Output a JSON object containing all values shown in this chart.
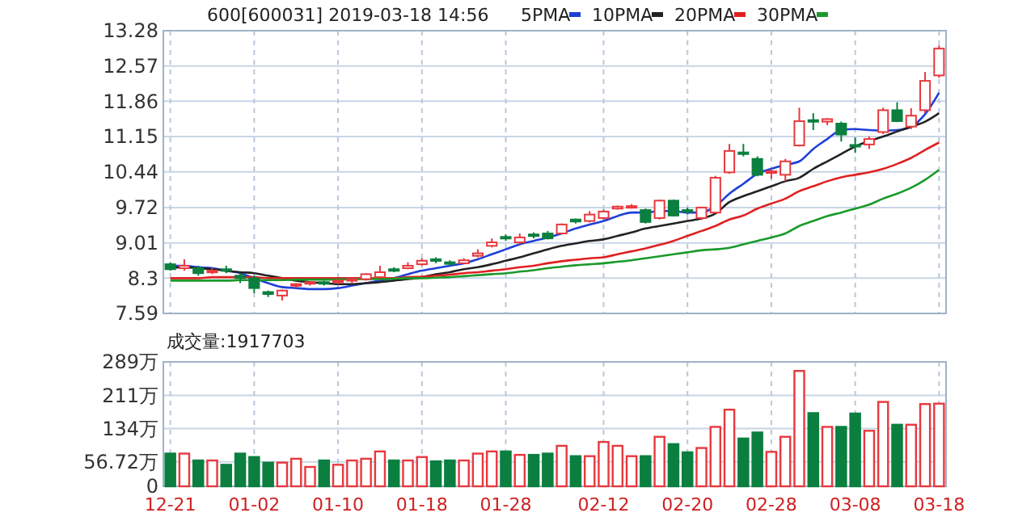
{
  "chart_data": [
    {
      "type": "candlestick",
      "title": "600[600031] 2019-03-18 14:56",
      "legend": "top right",
      "grid": true,
      "tick_labels": "y",
      "categories": [
        null,
        null,
        null,
        null,
        null,
        null,
        null,
        null,
        null,
        null,
        null,
        null,
        null,
        null,
        null,
        null,
        null,
        null,
        null,
        null,
        null,
        null,
        null,
        null,
        null,
        null,
        null,
        null,
        null,
        null,
        null,
        null,
        null,
        null,
        null,
        null,
        null,
        null,
        null,
        null,
        null,
        null,
        null,
        null,
        null,
        null,
        null,
        null,
        null,
        null,
        null,
        null,
        null,
        null,
        null,
        null
      ],
      "ylim": [
        7.59,
        13.28
      ],
      "yticks": [
        7.59,
        8.3,
        9.01,
        9.72,
        10.44,
        11.15,
        11.86,
        12.57,
        13.28
      ],
      "ohlc": [
        [
          8.58,
          8.62,
          8.45,
          8.48
        ],
        [
          8.5,
          8.68,
          8.45,
          8.55
        ],
        [
          8.5,
          8.55,
          8.35,
          8.4
        ],
        [
          8.42,
          8.5,
          8.38,
          8.45
        ],
        [
          8.48,
          8.55,
          8.4,
          8.45
        ],
        [
          8.35,
          8.4,
          8.2,
          8.3
        ],
        [
          8.3,
          8.35,
          8.0,
          8.1
        ],
        [
          8.02,
          8.05,
          7.92,
          7.98
        ],
        [
          7.95,
          8.07,
          7.85,
          8.05
        ],
        [
          8.15,
          8.2,
          8.1,
          8.18
        ],
        [
          8.2,
          8.24,
          8.15,
          8.22
        ],
        [
          8.22,
          8.25,
          8.15,
          8.2
        ],
        [
          8.22,
          8.27,
          8.18,
          8.25
        ],
        [
          8.25,
          8.3,
          8.2,
          8.28
        ],
        [
          8.28,
          8.4,
          8.25,
          8.38
        ],
        [
          8.32,
          8.55,
          8.3,
          8.42
        ],
        [
          8.48,
          8.52,
          8.42,
          8.45
        ],
        [
          8.5,
          8.62,
          8.48,
          8.55
        ],
        [
          8.58,
          8.7,
          8.55,
          8.65
        ],
        [
          8.68,
          8.72,
          8.6,
          8.65
        ],
        [
          8.62,
          8.66,
          8.55,
          8.6
        ],
        [
          8.6,
          8.7,
          8.58,
          8.66
        ],
        [
          8.75,
          8.88,
          8.72,
          8.8
        ],
        [
          8.95,
          9.1,
          8.92,
          9.02
        ],
        [
          9.13,
          9.18,
          9.05,
          9.1
        ],
        [
          9.02,
          9.2,
          8.98,
          9.12
        ],
        [
          9.18,
          9.22,
          9.1,
          9.15
        ],
        [
          9.2,
          9.25,
          9.08,
          9.1
        ],
        [
          9.2,
          9.4,
          9.18,
          9.38
        ],
        [
          9.48,
          9.5,
          9.4,
          9.44
        ],
        [
          9.45,
          9.65,
          9.42,
          9.58
        ],
        [
          9.51,
          9.68,
          9.48,
          9.64
        ],
        [
          9.7,
          9.76,
          9.68,
          9.74
        ],
        [
          9.74,
          9.79,
          9.7,
          9.75
        ],
        [
          9.67,
          9.7,
          9.4,
          9.43
        ],
        [
          9.51,
          9.88,
          9.48,
          9.86
        ],
        [
          9.86,
          9.88,
          9.54,
          9.56
        ],
        [
          9.67,
          9.72,
          9.58,
          9.66
        ],
        [
          9.51,
          9.74,
          9.47,
          9.72
        ],
        [
          9.62,
          10.36,
          9.6,
          10.32
        ],
        [
          10.43,
          11.0,
          10.4,
          10.86
        ],
        [
          10.83,
          11.0,
          10.75,
          10.8
        ],
        [
          10.7,
          10.75,
          10.35,
          10.38
        ],
        [
          10.43,
          10.5,
          10.3,
          10.45
        ],
        [
          10.38,
          10.7,
          10.25,
          10.65
        ],
        [
          10.97,
          11.73,
          10.95,
          11.46
        ],
        [
          11.48,
          11.62,
          11.28,
          11.45
        ],
        [
          11.45,
          11.52,
          11.38,
          11.5
        ],
        [
          11.41,
          11.45,
          11.05,
          11.19
        ],
        [
          10.98,
          11.13,
          10.82,
          10.97
        ],
        [
          10.99,
          11.15,
          10.9,
          11.1
        ],
        [
          11.24,
          11.73,
          11.2,
          11.68
        ],
        [
          11.68,
          11.84,
          11.44,
          11.46
        ],
        [
          11.35,
          11.72,
          11.3,
          11.57
        ],
        [
          11.68,
          12.45,
          11.62,
          12.27
        ],
        [
          12.38,
          12.98,
          12.33,
          12.92
        ]
      ],
      "series": [
        {
          "type": "line",
          "name": "5PMA",
          "color": "#1f3fd8",
          "values": [
            8.55,
            8.55,
            8.52,
            8.5,
            8.45,
            8.4,
            8.3,
            8.2,
            8.12,
            8.1,
            8.08,
            8.08,
            8.1,
            8.15,
            8.2,
            8.25,
            8.3,
            8.38,
            8.45,
            8.5,
            8.55,
            8.6,
            8.68,
            8.78,
            8.88,
            8.98,
            9.05,
            9.12,
            9.2,
            9.3,
            9.38,
            9.45,
            9.55,
            9.62,
            9.62,
            9.65,
            9.65,
            9.62,
            9.62,
            9.75,
            10.0,
            10.2,
            10.4,
            10.5,
            10.58,
            10.65,
            10.9,
            11.1,
            11.28,
            11.3,
            11.28,
            11.27,
            11.28,
            11.35,
            11.6,
            12.03
          ]
        },
        {
          "type": "line",
          "name": "10PMA",
          "color": "#222222",
          "values": [
            8.5,
            8.52,
            8.5,
            8.48,
            8.45,
            8.42,
            8.4,
            8.35,
            8.3,
            8.25,
            8.22,
            8.2,
            8.18,
            8.18,
            8.2,
            8.22,
            8.25,
            8.28,
            8.32,
            8.38,
            8.42,
            8.48,
            8.52,
            8.58,
            8.65,
            8.72,
            8.8,
            8.88,
            8.95,
            9.0,
            9.05,
            9.08,
            9.15,
            9.22,
            9.3,
            9.35,
            9.4,
            9.45,
            9.5,
            9.6,
            9.83,
            9.95,
            10.05,
            10.15,
            10.25,
            10.32,
            10.5,
            10.65,
            10.8,
            10.95,
            11.06,
            11.15,
            11.25,
            11.35,
            11.45,
            11.62
          ]
        },
        {
          "type": "line",
          "name": "20PMA",
          "color": "#e02020",
          "values": [
            8.3,
            8.3,
            8.3,
            8.32,
            8.32,
            8.32,
            8.32,
            8.3,
            8.3,
            8.3,
            8.3,
            8.3,
            8.3,
            8.3,
            8.3,
            8.3,
            8.3,
            8.32,
            8.33,
            8.35,
            8.37,
            8.4,
            8.42,
            8.45,
            8.48,
            8.52,
            8.55,
            8.6,
            8.64,
            8.67,
            8.7,
            8.72,
            8.78,
            8.84,
            8.9,
            8.97,
            9.05,
            9.15,
            9.25,
            9.35,
            9.48,
            9.56,
            9.7,
            9.8,
            9.9,
            10.05,
            10.15,
            10.25,
            10.33,
            10.38,
            10.43,
            10.5,
            10.6,
            10.72,
            10.88,
            11.03
          ]
        },
        {
          "type": "line",
          "name": "30PMA",
          "color": "#1a9a2a",
          "values": [
            8.25,
            8.25,
            8.25,
            8.25,
            8.25,
            8.26,
            8.26,
            8.26,
            8.26,
            8.27,
            8.27,
            8.27,
            8.27,
            8.28,
            8.28,
            8.28,
            8.29,
            8.3,
            8.3,
            8.31,
            8.32,
            8.34,
            8.36,
            8.38,
            8.4,
            8.43,
            8.46,
            8.5,
            8.53,
            8.56,
            8.58,
            8.6,
            8.63,
            8.66,
            8.7,
            8.74,
            8.78,
            8.82,
            8.86,
            8.88,
            8.91,
            8.98,
            9.05,
            9.12,
            9.2,
            9.35,
            9.45,
            9.55,
            9.62,
            9.7,
            9.78,
            9.9,
            10.0,
            10.12,
            10.28,
            10.48
          ]
        }
      ]
    },
    {
      "type": "bar",
      "title": "成交量:1917703",
      "grid": true,
      "categories": [
        "12-21",
        null,
        null,
        null,
        null,
        null,
        "01-02",
        null,
        null,
        null,
        null,
        null,
        "01-10",
        null,
        null,
        null,
        null,
        null,
        "01-18",
        null,
        null,
        null,
        null,
        null,
        "01-28",
        null,
        null,
        null,
        null,
        null,
        null,
        "02-12",
        null,
        null,
        null,
        null,
        null,
        "02-20",
        null,
        null,
        null,
        null,
        null,
        "02-28",
        null,
        null,
        null,
        null,
        null,
        "03-08",
        null,
        null,
        null,
        null,
        null,
        "03-18"
      ],
      "ylim": [
        0,
        289
      ],
      "yticks": [
        0,
        {
          "value": 56.72,
          "label": "56.72万"
        },
        {
          "value": 134,
          "label": "134万"
        },
        {
          "value": 211,
          "label": "211万"
        },
        {
          "value": 289,
          "label": "289万"
        }
      ],
      "values": [
        76,
        76,
        60,
        60,
        50,
        76,
        68,
        55,
        55,
        64,
        45,
        60,
        50,
        60,
        64,
        81,
        60,
        60,
        68,
        58,
        60,
        60,
        76,
        81,
        81,
        73,
        73,
        76,
        94,
        70,
        70,
        103,
        94,
        70,
        70,
        115,
        98,
        79,
        89,
        138,
        178,
        111,
        125,
        80,
        115,
        268,
        170,
        138,
        138,
        169,
        129,
        196,
        143,
        143,
        191,
        192
      ],
      "colors": [
        "#0b7f3f",
        "#e8383d",
        "#0b7f3f",
        "#e8383d",
        "#0b7f3f",
        "#0b7f3f",
        "#0b7f3f",
        "#0b7f3f",
        "#e8383d",
        "#e8383d",
        "#e8383d",
        "#0b7f3f",
        "#e8383d",
        "#e8383d",
        "#e8383d",
        "#e8383d",
        "#0b7f3f",
        "#e8383d",
        "#e8383d",
        "#0b7f3f",
        "#0b7f3f",
        "#e8383d",
        "#e8383d",
        "#e8383d",
        "#0b7f3f",
        "#e8383d",
        "#0b7f3f",
        "#0b7f3f",
        "#e8383d",
        "#0b7f3f",
        "#e8383d",
        "#e8383d",
        "#e8383d",
        "#e8383d",
        "#0b7f3f",
        "#e8383d",
        "#0b7f3f",
        "#0b7f3f",
        "#e8383d",
        "#e8383d",
        "#e8383d",
        "#0b7f3f",
        "#0b7f3f",
        "#e8383d",
        "#e8383d",
        "#e8383d",
        "#0b7f3f",
        "#e8383d",
        "#0b7f3f",
        "#0b7f3f",
        "#e8383d",
        "#e8383d",
        "#0b7f3f",
        "#e8383d",
        "#e8383d",
        "#e8383d"
      ]
    }
  ]
}
